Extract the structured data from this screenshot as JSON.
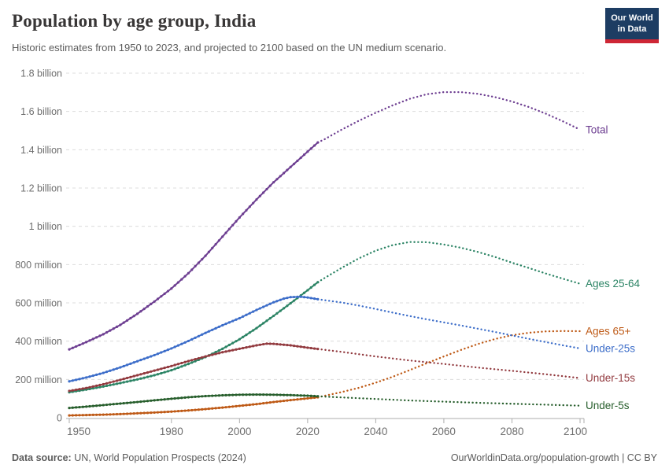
{
  "header": {
    "logo": {
      "line1": "Our World",
      "line2": "in Data"
    },
    "logo_bg": "#1d3d63",
    "logo_accent": "#ce2635"
  },
  "footer": {
    "source_label": "Data source:",
    "source_value": " UN, World Population Prospects (2024)",
    "link": "OurWorldinData.org/population-growth | CC BY"
  },
  "chart_data": {
    "type": "line",
    "title": "Population by age group, India",
    "subtitle": "Historic estimates from 1950 to 2023, and projected to 2100 based on the UN medium scenario.",
    "unit": "billion people",
    "x_range": [
      1950,
      2100
    ],
    "ylim": [
      0,
      1.8
    ],
    "historic_end": 2023,
    "grid": "dashed-horizontal",
    "legend_position": "right-end-labels",
    "x_ticks": [
      1950,
      1980,
      2000,
      2020,
      2040,
      2060,
      2080,
      2100
    ],
    "y_ticks": [
      {
        "value": 1.8,
        "label": "1.8 billion"
      },
      {
        "value": 1.6,
        "label": "1.6 billion"
      },
      {
        "value": 1.4,
        "label": "1.4 billion"
      },
      {
        "value": 1.2,
        "label": "1.2 billion"
      },
      {
        "value": 1.0,
        "label": "1 billion"
      },
      {
        "value": 0.8,
        "label": "800 million"
      },
      {
        "value": 0.6,
        "label": "600 million"
      },
      {
        "value": 0.4,
        "label": "400 million"
      },
      {
        "value": 0.2,
        "label": "200 million"
      },
      {
        "value": 0,
        "label": "0"
      }
    ],
    "series": [
      {
        "name": "Total",
        "color": "#6D3E91",
        "points": [
          [
            1950,
            0.357
          ],
          [
            1955,
            0.395
          ],
          [
            1960,
            0.436
          ],
          [
            1965,
            0.485
          ],
          [
            1970,
            0.543
          ],
          [
            1975,
            0.607
          ],
          [
            1980,
            0.675
          ],
          [
            1985,
            0.755
          ],
          [
            1990,
            0.846
          ],
          [
            1995,
            0.946
          ],
          [
            2000,
            1.046
          ],
          [
            2005,
            1.14
          ],
          [
            2010,
            1.23
          ],
          [
            2015,
            1.31
          ],
          [
            2020,
            1.39
          ],
          [
            2023,
            1.438
          ],
          [
            2025,
            1.455
          ],
          [
            2030,
            1.505
          ],
          [
            2035,
            1.551
          ],
          [
            2040,
            1.593
          ],
          [
            2045,
            1.632
          ],
          [
            2050,
            1.666
          ],
          [
            2055,
            1.69
          ],
          [
            2060,
            1.701
          ],
          [
            2065,
            1.701
          ],
          [
            2070,
            1.692
          ],
          [
            2075,
            1.675
          ],
          [
            2080,
            1.652
          ],
          [
            2085,
            1.623
          ],
          [
            2090,
            1.588
          ],
          [
            2095,
            1.548
          ],
          [
            2100,
            1.505
          ]
        ]
      },
      {
        "name": "Ages 25-64",
        "color": "#2C8465",
        "points": [
          [
            1950,
            0.133
          ],
          [
            1955,
            0.147
          ],
          [
            1960,
            0.163
          ],
          [
            1965,
            0.181
          ],
          [
            1970,
            0.2
          ],
          [
            1975,
            0.222
          ],
          [
            1980,
            0.248
          ],
          [
            1985,
            0.281
          ],
          [
            1990,
            0.317
          ],
          [
            1995,
            0.36
          ],
          [
            2000,
            0.41
          ],
          [
            2005,
            0.468
          ],
          [
            2010,
            0.532
          ],
          [
            2015,
            0.598
          ],
          [
            2020,
            0.666
          ],
          [
            2023,
            0.708
          ],
          [
            2025,
            0.73
          ],
          [
            2030,
            0.783
          ],
          [
            2035,
            0.832
          ],
          [
            2040,
            0.873
          ],
          [
            2045,
            0.902
          ],
          [
            2050,
            0.918
          ],
          [
            2055,
            0.917
          ],
          [
            2060,
            0.905
          ],
          [
            2065,
            0.888
          ],
          [
            2070,
            0.866
          ],
          [
            2075,
            0.84
          ],
          [
            2080,
            0.81
          ],
          [
            2085,
            0.782
          ],
          [
            2090,
            0.753
          ],
          [
            2095,
            0.726
          ],
          [
            2100,
            0.7
          ]
        ]
      },
      {
        "name": "Ages 65+",
        "color": "#BE5915",
        "points": [
          [
            1950,
            0.012
          ],
          [
            1955,
            0.014
          ],
          [
            1960,
            0.016
          ],
          [
            1965,
            0.019
          ],
          [
            1970,
            0.023
          ],
          [
            1975,
            0.027
          ],
          [
            1980,
            0.032
          ],
          [
            1985,
            0.038
          ],
          [
            1990,
            0.045
          ],
          [
            1995,
            0.053
          ],
          [
            2000,
            0.062
          ],
          [
            2005,
            0.071
          ],
          [
            2010,
            0.082
          ],
          [
            2015,
            0.092
          ],
          [
            2020,
            0.101
          ],
          [
            2023,
            0.107
          ],
          [
            2030,
            0.134
          ],
          [
            2035,
            0.156
          ],
          [
            2040,
            0.183
          ],
          [
            2045,
            0.214
          ],
          [
            2050,
            0.249
          ],
          [
            2055,
            0.285
          ],
          [
            2060,
            0.32
          ],
          [
            2065,
            0.354
          ],
          [
            2070,
            0.385
          ],
          [
            2075,
            0.411
          ],
          [
            2080,
            0.431
          ],
          [
            2085,
            0.444
          ],
          [
            2090,
            0.451
          ],
          [
            2095,
            0.453
          ],
          [
            2100,
            0.452
          ]
        ]
      },
      {
        "name": "Under-25s",
        "color": "#3C6DC9",
        "points": [
          [
            1950,
            0.19
          ],
          [
            1955,
            0.21
          ],
          [
            1960,
            0.234
          ],
          [
            1965,
            0.263
          ],
          [
            1970,
            0.295
          ],
          [
            1975,
            0.327
          ],
          [
            1980,
            0.362
          ],
          [
            1985,
            0.401
          ],
          [
            1990,
            0.443
          ],
          [
            1995,
            0.483
          ],
          [
            2000,
            0.52
          ],
          [
            2005,
            0.563
          ],
          [
            2010,
            0.603
          ],
          [
            2013,
            0.622
          ],
          [
            2015,
            0.63
          ],
          [
            2018,
            0.632
          ],
          [
            2020,
            0.628
          ],
          [
            2023,
            0.619
          ],
          [
            2025,
            0.614
          ],
          [
            2030,
            0.602
          ],
          [
            2035,
            0.586
          ],
          [
            2040,
            0.568
          ],
          [
            2045,
            0.549
          ],
          [
            2050,
            0.531
          ],
          [
            2055,
            0.514
          ],
          [
            2060,
            0.498
          ],
          [
            2065,
            0.482
          ],
          [
            2070,
            0.465
          ],
          [
            2075,
            0.448
          ],
          [
            2080,
            0.43
          ],
          [
            2085,
            0.412
          ],
          [
            2090,
            0.395
          ],
          [
            2095,
            0.378
          ],
          [
            2100,
            0.362
          ]
        ]
      },
      {
        "name": "Under-15s",
        "color": "#923A3F",
        "points": [
          [
            1950,
            0.14
          ],
          [
            1955,
            0.155
          ],
          [
            1960,
            0.175
          ],
          [
            1965,
            0.198
          ],
          [
            1970,
            0.222
          ],
          [
            1975,
            0.246
          ],
          [
            1980,
            0.27
          ],
          [
            1985,
            0.296
          ],
          [
            1990,
            0.32
          ],
          [
            1995,
            0.342
          ],
          [
            2000,
            0.36
          ],
          [
            2005,
            0.378
          ],
          [
            2008,
            0.387
          ],
          [
            2010,
            0.386
          ],
          [
            2015,
            0.378
          ],
          [
            2020,
            0.366
          ],
          [
            2023,
            0.359
          ],
          [
            2030,
            0.344
          ],
          [
            2040,
            0.32
          ],
          [
            2050,
            0.299
          ],
          [
            2060,
            0.281
          ],
          [
            2070,
            0.262
          ],
          [
            2080,
            0.245
          ],
          [
            2090,
            0.227
          ],
          [
            2100,
            0.207
          ]
        ]
      },
      {
        "name": "Under-5s",
        "color": "#275E2C",
        "points": [
          [
            1950,
            0.051
          ],
          [
            1955,
            0.058
          ],
          [
            1960,
            0.066
          ],
          [
            1965,
            0.074
          ],
          [
            1970,
            0.082
          ],
          [
            1975,
            0.091
          ],
          [
            1980,
            0.099
          ],
          [
            1985,
            0.107
          ],
          [
            1990,
            0.113
          ],
          [
            1995,
            0.117
          ],
          [
            2000,
            0.12
          ],
          [
            2005,
            0.121
          ],
          [
            2010,
            0.12
          ],
          [
            2015,
            0.118
          ],
          [
            2020,
            0.115
          ],
          [
            2023,
            0.112
          ],
          [
            2030,
            0.106
          ],
          [
            2040,
            0.098
          ],
          [
            2050,
            0.09
          ],
          [
            2060,
            0.084
          ],
          [
            2070,
            0.078
          ],
          [
            2080,
            0.073
          ],
          [
            2090,
            0.068
          ],
          [
            2100,
            0.063
          ]
        ]
      }
    ]
  }
}
